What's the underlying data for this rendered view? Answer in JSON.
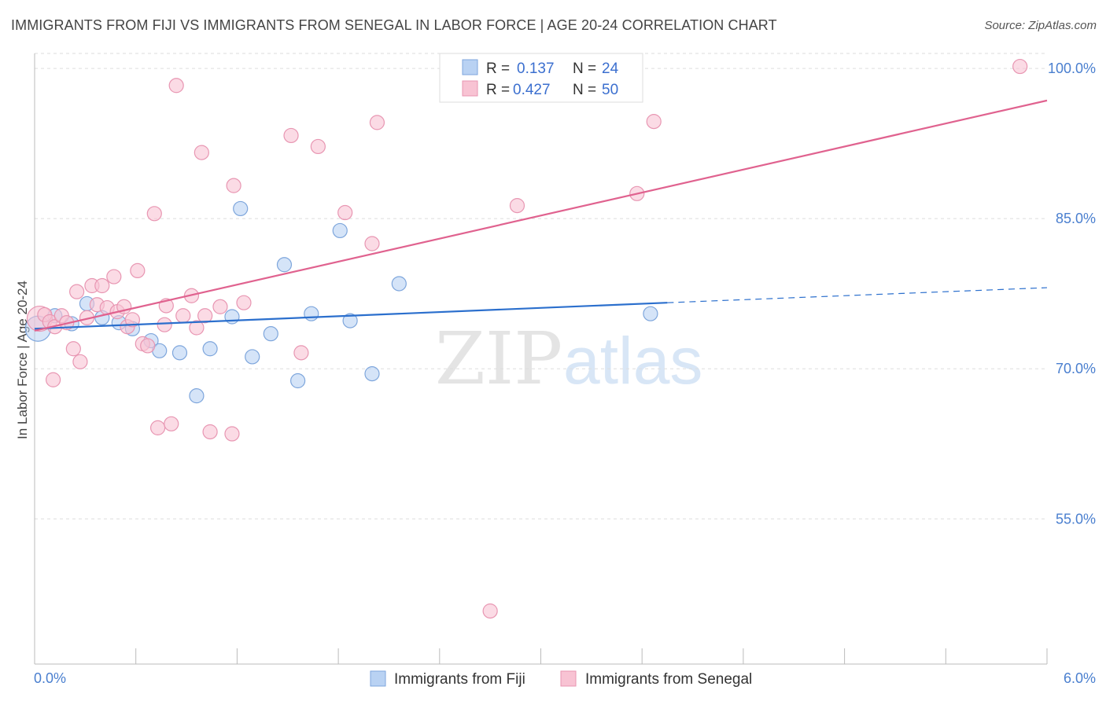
{
  "title": "IMMIGRANTS FROM FIJI VS IMMIGRANTS FROM SENEGAL IN LABOR FORCE | AGE 20-24 CORRELATION CHART",
  "source": "Source: ZipAtlas.com",
  "watermark": {
    "zip": "ZIP",
    "atlas": "atlas"
  },
  "colors": {
    "fiji_fill": "#b9d2f3",
    "fiji_stroke": "#7ea6dc",
    "fiji_line": "#2b6fcd",
    "senegal_fill": "#f8c3d3",
    "senegal_stroke": "#e896b2",
    "senegal_line": "#e0628f",
    "grid": "#dddddd",
    "tick_label": "#4a7fcf"
  },
  "legend": {
    "rows": [
      {
        "r_label": "R =",
        "r_value": "0.137",
        "n_label": "N =",
        "n_value": "24"
      },
      {
        "r_label": "R =",
        "r_value": "0.427",
        "n_label": "N =",
        "n_value": "50"
      }
    ]
  },
  "chart_data": {
    "type": "scatter",
    "xlabel": "",
    "ylabel": "In Labor Force | Age 20-24",
    "xlim": [
      0.0,
      6.0
    ],
    "ylim": [
      40.5,
      101.5
    ],
    "x_tick_labels": [
      "0.0%",
      "6.0%"
    ],
    "y_ticks": [
      55.0,
      70.0,
      85.0,
      100.0
    ],
    "y_tick_labels": [
      "55.0%",
      "70.0%",
      "85.0%",
      "100.0%"
    ],
    "grid": true,
    "legend_position": "top-center",
    "series": [
      {
        "name": "Immigrants from Fiji",
        "trend": {
          "x0": 0.0,
          "y0": 74.0,
          "x1": 3.75,
          "y1": 76.6,
          "dashed_to_x": 6.0,
          "dashed_to_y": 78.1
        },
        "points": [
          {
            "x": 0.02,
            "y": 74.0,
            "big": true
          },
          {
            "x": 0.12,
            "y": 75.3
          },
          {
            "x": 0.22,
            "y": 74.5
          },
          {
            "x": 0.31,
            "y": 76.5
          },
          {
            "x": 0.4,
            "y": 75.1
          },
          {
            "x": 0.5,
            "y": 74.6
          },
          {
            "x": 0.58,
            "y": 74.0
          },
          {
            "x": 0.69,
            "y": 72.8
          },
          {
            "x": 0.74,
            "y": 71.8
          },
          {
            "x": 0.86,
            "y": 71.6
          },
          {
            "x": 0.96,
            "y": 67.3
          },
          {
            "x": 1.04,
            "y": 72.0
          },
          {
            "x": 1.17,
            "y": 75.2
          },
          {
            "x": 1.22,
            "y": 86.0
          },
          {
            "x": 1.29,
            "y": 71.2
          },
          {
            "x": 1.4,
            "y": 73.5
          },
          {
            "x": 1.48,
            "y": 80.4
          },
          {
            "x": 1.56,
            "y": 68.8
          },
          {
            "x": 1.64,
            "y": 75.5
          },
          {
            "x": 1.81,
            "y": 83.8
          },
          {
            "x": 1.87,
            "y": 74.8
          },
          {
            "x": 2.0,
            "y": 69.5
          },
          {
            "x": 2.16,
            "y": 78.5
          },
          {
            "x": 3.65,
            "y": 75.5
          }
        ]
      },
      {
        "name": "Immigrants from Senegal",
        "trend": {
          "x0": 0.0,
          "y0": 73.8,
          "x1": 6.0,
          "y1": 96.8
        },
        "points": [
          {
            "x": 0.03,
            "y": 75.0,
            "big": true
          },
          {
            "x": 0.06,
            "y": 75.4
          },
          {
            "x": 0.09,
            "y": 74.7
          },
          {
            "x": 0.12,
            "y": 74.2
          },
          {
            "x": 0.16,
            "y": 75.3
          },
          {
            "x": 0.19,
            "y": 74.6
          },
          {
            "x": 0.23,
            "y": 72.0
          },
          {
            "x": 0.27,
            "y": 70.7
          },
          {
            "x": 0.31,
            "y": 75.1
          },
          {
            "x": 0.34,
            "y": 78.3
          },
          {
            "x": 0.37,
            "y": 76.4
          },
          {
            "x": 0.4,
            "y": 78.3
          },
          {
            "x": 0.43,
            "y": 76.1
          },
          {
            "x": 0.47,
            "y": 79.2
          },
          {
            "x": 0.49,
            "y": 75.7
          },
          {
            "x": 0.53,
            "y": 76.2
          },
          {
            "x": 0.55,
            "y": 74.2
          },
          {
            "x": 0.58,
            "y": 74.9
          },
          {
            "x": 0.61,
            "y": 79.8
          },
          {
            "x": 0.64,
            "y": 72.5
          },
          {
            "x": 0.67,
            "y": 72.3
          },
          {
            "x": 0.71,
            "y": 85.5
          },
          {
            "x": 0.73,
            "y": 64.1
          },
          {
            "x": 0.77,
            "y": 74.4
          },
          {
            "x": 0.78,
            "y": 76.3
          },
          {
            "x": 0.81,
            "y": 64.5
          },
          {
            "x": 0.84,
            "y": 98.3
          },
          {
            "x": 0.88,
            "y": 75.3
          },
          {
            "x": 0.93,
            "y": 77.3
          },
          {
            "x": 0.96,
            "y": 74.1
          },
          {
            "x": 0.99,
            "y": 91.6
          },
          {
            "x": 1.01,
            "y": 75.3
          },
          {
            "x": 1.04,
            "y": 63.7
          },
          {
            "x": 1.1,
            "y": 76.2
          },
          {
            "x": 1.17,
            "y": 63.5
          },
          {
            "x": 1.18,
            "y": 88.3
          },
          {
            "x": 1.24,
            "y": 76.6
          },
          {
            "x": 0.25,
            "y": 77.7
          },
          {
            "x": 0.11,
            "y": 68.9
          },
          {
            "x": 1.52,
            "y": 93.3
          },
          {
            "x": 1.58,
            "y": 71.6
          },
          {
            "x": 1.68,
            "y": 92.2
          },
          {
            "x": 1.84,
            "y": 85.6
          },
          {
            "x": 2.0,
            "y": 82.5
          },
          {
            "x": 2.03,
            "y": 94.6
          },
          {
            "x": 2.7,
            "y": 45.8
          },
          {
            "x": 2.86,
            "y": 86.3
          },
          {
            "x": 3.57,
            "y": 87.5
          },
          {
            "x": 3.67,
            "y": 94.7
          },
          {
            "x": 5.84,
            "y": 100.2
          }
        ]
      }
    ]
  }
}
